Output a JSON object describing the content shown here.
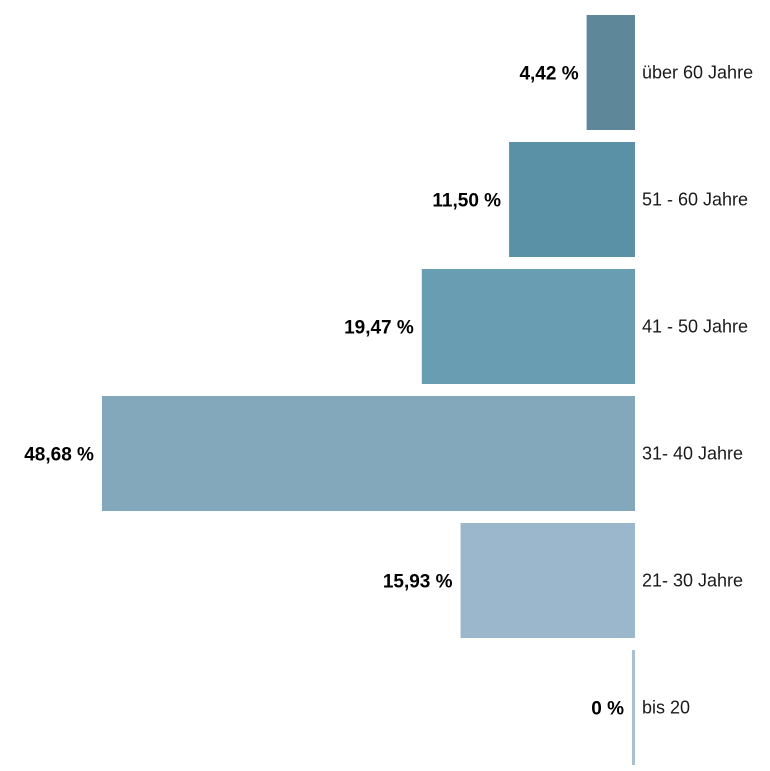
{
  "chart_data": {
    "type": "bar",
    "orientation": "horizontal",
    "categories": [
      "über 60 Jahre",
      "51 - 60 Jahre",
      "41 - 50 Jahre",
      "31- 40 Jahre",
      "21- 30 Jahre",
      "bis 20"
    ],
    "values": [
      4.42,
      11.5,
      19.47,
      48.68,
      15.93,
      0
    ],
    "value_labels": [
      "4,42 %",
      "11,50 %",
      "19,47 %",
      "48,68 %",
      "15,93 %",
      "0 %"
    ],
    "colors": [
      "#5e8799",
      "#5b91a6",
      "#699eb2",
      "#83a8bb",
      "#9bb7cb",
      "#a9c1d3"
    ],
    "grid": false,
    "legend": "none"
  }
}
